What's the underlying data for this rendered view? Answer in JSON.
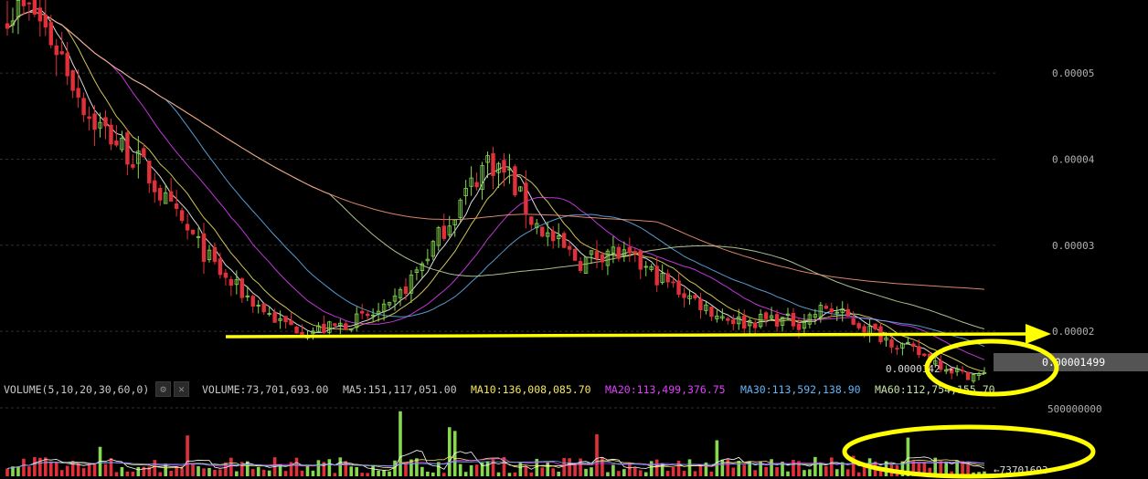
{
  "chart_data": [
    {
      "type": "candlestick",
      "y_ticks": [
        "0.00005",
        "0.00004",
        "0.00003",
        "0.00002"
      ],
      "ylim": [
        1.45e-05,
        5.85e-05
      ],
      "current_price_label": "0.00001499",
      "low_marker_label": "0.0000142 →",
      "candle_count": 180,
      "series": [
        {
          "name": "MA5",
          "color": "#ffffff"
        },
        {
          "name": "MA10",
          "color": "#f5e663"
        },
        {
          "name": "MA20",
          "color": "#e040fb"
        },
        {
          "name": "MA30",
          "color": "#64b5f6"
        },
        {
          "name": "MA60",
          "color": "#c5e1a5"
        },
        {
          "name": "MA120",
          "color": "#ff9e80"
        }
      ],
      "close_trend": [
        [
          0,
          5.75e-05
        ],
        [
          5,
          5.7e-05
        ],
        [
          10,
          5.2e-05
        ],
        [
          15,
          4.5e-05
        ],
        [
          20,
          4.2e-05
        ],
        [
          25,
          3.9e-05
        ],
        [
          30,
          3.4e-05
        ],
        [
          35,
          3e-05
        ],
        [
          40,
          2.6e-05
        ],
        [
          45,
          2.35e-05
        ],
        [
          50,
          2.1e-05
        ],
        [
          55,
          2e-05
        ],
        [
          60,
          2.05e-05
        ],
        [
          65,
          2.15e-05
        ],
        [
          70,
          2.25e-05
        ],
        [
          75,
          2.7e-05
        ],
        [
          80,
          3.2e-05
        ],
        [
          84,
          3.6e-05
        ],
        [
          88,
          4e-05
        ],
        [
          92,
          3.8e-05
        ],
        [
          96,
          3.3e-05
        ],
        [
          100,
          3.05e-05
        ],
        [
          105,
          2.8e-05
        ],
        [
          110,
          2.95e-05
        ],
        [
          115,
          2.8e-05
        ],
        [
          120,
          2.6e-05
        ],
        [
          125,
          2.4e-05
        ],
        [
          130,
          2.2e-05
        ],
        [
          135,
          2.1e-05
        ],
        [
          140,
          2.15e-05
        ],
        [
          145,
          2.1e-05
        ],
        [
          150,
          2.28e-05
        ],
        [
          154,
          2.15e-05
        ],
        [
          160,
          1.95e-05
        ],
        [
          165,
          1.8e-05
        ],
        [
          170,
          1.65e-05
        ],
        [
          175,
          1.5e-05
        ],
        [
          179,
          1.49e-05
        ]
      ]
    },
    {
      "type": "bar",
      "name": "volume",
      "y_ticks": [
        "500000000"
      ],
      "last_volume_label": "←73701693"
    }
  ],
  "volume_header": {
    "params": "VOLUME(5,10,20,30,60,0)",
    "items": [
      {
        "label": "VOLUME:73,701,693.00",
        "color": "#c8c8c8"
      },
      {
        "label": "MA5:151,117,051.00",
        "color": "#c8c8c8"
      },
      {
        "label": "MA10:136,008,085.70",
        "color": "#f5e663"
      },
      {
        "label": "MA20:113,499,376.75",
        "color": "#e040fb"
      },
      {
        "label": "MA30:113,592,138.90",
        "color": "#64b5f6"
      },
      {
        "label": "MA60:112,754,155.70",
        "color": "#c5e1a5"
      }
    ],
    "settings_icon": "gear-icon",
    "close_icon": "close-icon"
  },
  "annotations": {
    "color": "#ffff00",
    "support_arrow": "arrow-right",
    "circles": 2
  },
  "colors": {
    "up": "#86d850",
    "down": "#e0303a",
    "grid": "#303030",
    "background": "#000000",
    "price_tag": "#545454"
  }
}
